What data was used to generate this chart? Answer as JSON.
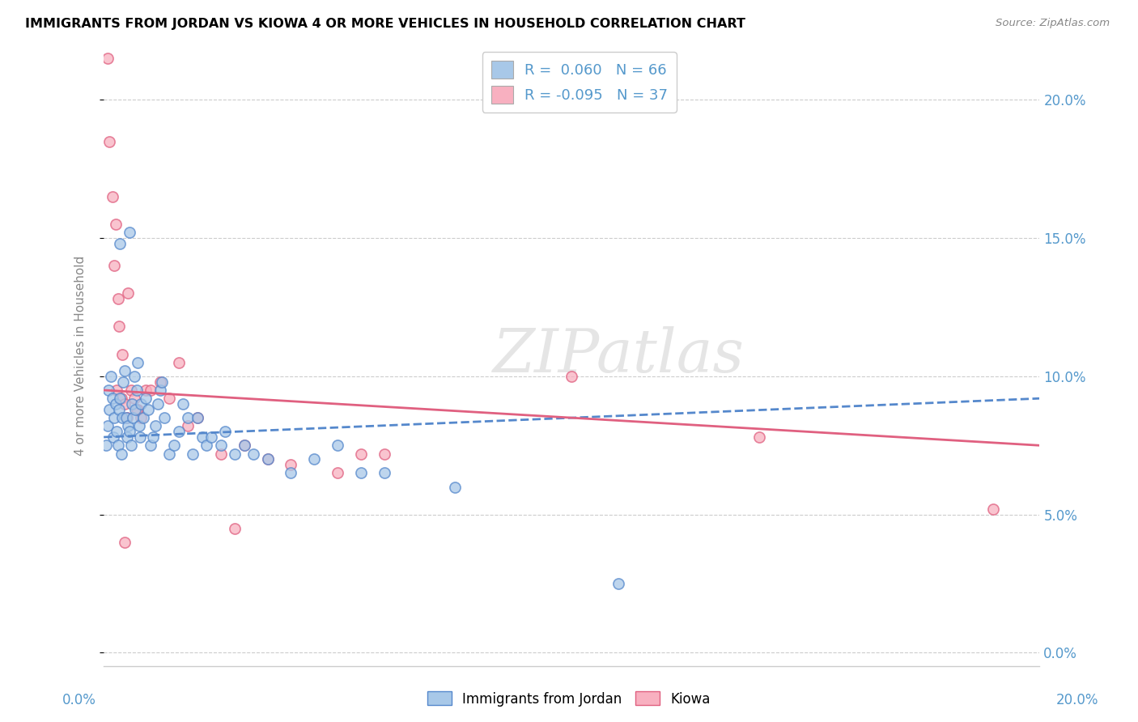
{
  "title": "IMMIGRANTS FROM JORDAN VS KIOWA 4 OR MORE VEHICLES IN HOUSEHOLD CORRELATION CHART",
  "source": "Source: ZipAtlas.com",
  "ylabel": "4 or more Vehicles in Household",
  "ylabel_tick_vals": [
    0.0,
    5.0,
    10.0,
    15.0,
    20.0
  ],
  "xlim": [
    0.0,
    20.0
  ],
  "ylim": [
    -0.5,
    22.0
  ],
  "legend_jordan_r": "0.060",
  "legend_jordan_n": "66",
  "legend_kiowa_r": "-0.095",
  "legend_kiowa_n": "37",
  "color_jordan": "#a8c8e8",
  "color_jordan_line": "#5588cc",
  "color_kiowa": "#f8b0c0",
  "color_kiowa_line": "#e06080",
  "watermark": "ZIPatlas",
  "jordan_points_x": [
    0.05,
    0.08,
    0.1,
    0.12,
    0.15,
    0.18,
    0.2,
    0.22,
    0.25,
    0.28,
    0.3,
    0.32,
    0.35,
    0.38,
    0.4,
    0.42,
    0.45,
    0.48,
    0.5,
    0.52,
    0.55,
    0.58,
    0.6,
    0.62,
    0.65,
    0.68,
    0.7,
    0.72,
    0.75,
    0.78,
    0.8,
    0.85,
    0.9,
    0.95,
    1.0,
    1.05,
    1.1,
    1.15,
    1.2,
    1.25,
    1.3,
    1.4,
    1.5,
    1.6,
    1.7,
    1.8,
    1.9,
    2.0,
    2.1,
    2.2,
    2.3,
    2.5,
    2.6,
    2.8,
    3.0,
    3.2,
    3.5,
    4.0,
    4.5,
    5.0,
    5.5,
    6.0,
    7.5,
    11.0,
    0.35,
    0.55
  ],
  "jordan_points_y": [
    7.5,
    8.2,
    9.5,
    8.8,
    10.0,
    9.2,
    7.8,
    8.5,
    9.0,
    8.0,
    7.5,
    8.8,
    9.2,
    7.2,
    8.5,
    9.8,
    10.2,
    8.5,
    7.8,
    8.2,
    8.0,
    7.5,
    9.0,
    8.5,
    10.0,
    8.8,
    9.5,
    10.5,
    8.2,
    7.8,
    9.0,
    8.5,
    9.2,
    8.8,
    7.5,
    7.8,
    8.2,
    9.0,
    9.5,
    9.8,
    8.5,
    7.2,
    7.5,
    8.0,
    9.0,
    8.5,
    7.2,
    8.5,
    7.8,
    7.5,
    7.8,
    7.5,
    8.0,
    7.2,
    7.5,
    7.2,
    7.0,
    6.5,
    7.0,
    7.5,
    6.5,
    6.5,
    6.0,
    2.5,
    14.8,
    15.2
  ],
  "kiowa_points_x": [
    0.08,
    0.12,
    0.18,
    0.22,
    0.28,
    0.32,
    0.38,
    0.45,
    0.52,
    0.58,
    0.65,
    0.72,
    0.8,
    0.9,
    1.0,
    1.2,
    1.4,
    1.6,
    1.8,
    2.0,
    2.5,
    3.0,
    3.5,
    4.0,
    5.0,
    5.5,
    6.0,
    0.3,
    0.5,
    0.7,
    0.4,
    2.8,
    10.0,
    14.0,
    19.0,
    0.25,
    0.45
  ],
  "kiowa_points_y": [
    21.5,
    18.5,
    16.5,
    14.0,
    9.5,
    11.8,
    9.2,
    9.0,
    13.0,
    9.5,
    9.2,
    8.8,
    8.5,
    9.5,
    9.5,
    9.8,
    9.2,
    10.5,
    8.2,
    8.5,
    7.2,
    7.5,
    7.0,
    6.8,
    6.5,
    7.2,
    7.2,
    12.8,
    8.5,
    8.8,
    10.8,
    4.5,
    10.0,
    7.8,
    5.2,
    15.5,
    4.0
  ],
  "jordan_trend_x0": 0.0,
  "jordan_trend_y0": 7.8,
  "jordan_trend_x1": 20.0,
  "jordan_trend_y1": 9.2,
  "kiowa_trend_x0": 0.0,
  "kiowa_trend_y0": 9.5,
  "kiowa_trend_x1": 20.0,
  "kiowa_trend_y1": 7.5
}
